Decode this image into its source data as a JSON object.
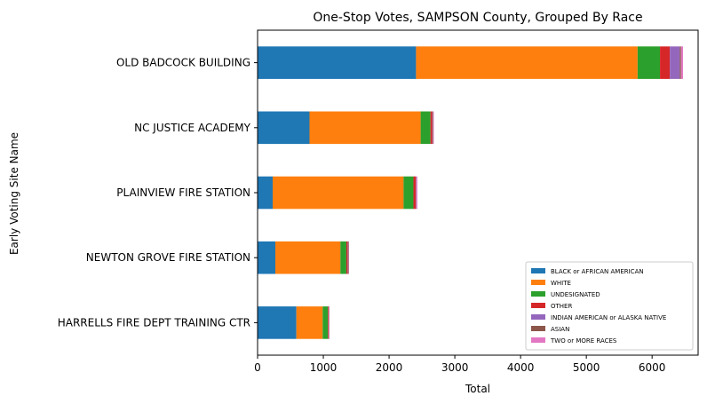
{
  "chart_data": {
    "type": "bar",
    "orientation": "horizontal",
    "stacked": true,
    "title": "One-Stop Votes, SAMPSON County, Grouped By Race",
    "xlabel": "Total",
    "ylabel": "Early Voting Site Name",
    "xlim": [
      0,
      6700
    ],
    "xticks": [
      "0",
      "1000",
      "2000",
      "3000",
      "4000",
      "5000",
      "6000"
    ],
    "grid": false,
    "legend_position": "lower-right",
    "categories": [
      "OLD BADCOCK BUILDING",
      "NC JUSTICE ACADEMY",
      "PLAINVIEW FIRE STATION",
      "NEWTON GROVE FIRE STATION",
      "HARRELLS FIRE DEPT TRAINING CTR"
    ],
    "series": [
      {
        "name": "BLACK or AFRICAN AMERICAN",
        "color": "#1f77b4",
        "values": [
          2410,
          790,
          230,
          270,
          590
        ]
      },
      {
        "name": "WHITE",
        "color": "#ff7f0e",
        "values": [
          3370,
          1690,
          1990,
          990,
          400
        ]
      },
      {
        "name": "UNDESIGNATED",
        "color": "#2ca02c",
        "values": [
          340,
          150,
          150,
          90,
          80
        ]
      },
      {
        "name": "OTHER",
        "color": "#d62728",
        "values": [
          150,
          25,
          35,
          20,
          10
        ]
      },
      {
        "name": "INDIAN AMERICAN or ALASKA NATIVE",
        "color": "#9467bd",
        "values": [
          150,
          5,
          5,
          5,
          5
        ]
      },
      {
        "name": "ASIAN",
        "color": "#8c564b",
        "values": [
          20,
          10,
          5,
          10,
          5
        ]
      },
      {
        "name": "TWO or MORE RACES",
        "color": "#e377c2",
        "values": [
          30,
          10,
          15,
          5,
          5
        ]
      }
    ]
  }
}
